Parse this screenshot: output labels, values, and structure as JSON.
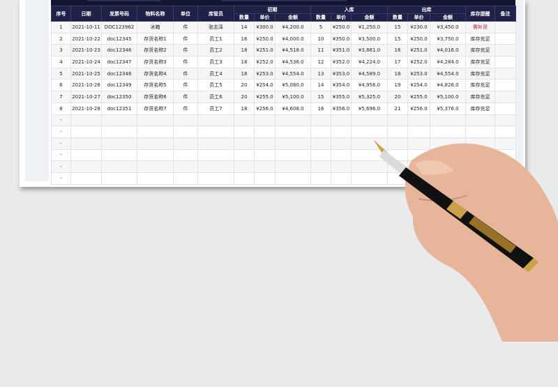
{
  "header": {
    "seq": "序号",
    "date": "日期",
    "invoice": "发票号码",
    "material": "物料名称",
    "unit": "单位",
    "keeper": "库管员",
    "opening": "初期",
    "inbound": "入库",
    "outbound": "出库",
    "reminder": "库存提醒",
    "remark": "备注",
    "qty": "数量",
    "price": "单价",
    "amount": "金额"
  },
  "rows": [
    [
      "1",
      "2021-10-11",
      "DOC123962",
      "冰箱",
      "件",
      "张志泽",
      "14",
      "¥300.0",
      "¥4,200.0",
      "5",
      "¥250.0",
      "¥1,250.0",
      "15",
      "¥230.0",
      "¥3,450.0",
      "需补货",
      ""
    ],
    [
      "2",
      "2021-10-22",
      "doc12345",
      "存货名称1",
      "件",
      "员工1",
      "16",
      "¥250.0",
      "¥4,000.0",
      "10",
      "¥350.0",
      "¥3,500.0",
      "15",
      "¥250.0",
      "¥3,750.0",
      "库存充足",
      ""
    ],
    [
      "3",
      "2021-10-23",
      "doc12346",
      "存货名称2",
      "件",
      "员工2",
      "18",
      "¥251.0",
      "¥4,518.0",
      "11",
      "¥351.0",
      "¥3,861.0",
      "16",
      "¥251.0",
      "¥4,016.0",
      "库存充足",
      ""
    ],
    [
      "4",
      "2021-10-24",
      "doc12347",
      "存货名称3",
      "件",
      "员工3",
      "18",
      "¥252.0",
      "¥4,536.0",
      "12",
      "¥352.0",
      "¥4,224.0",
      "17",
      "¥252.0",
      "¥4,284.0",
      "库存充足",
      ""
    ],
    [
      "5",
      "2021-10-25",
      "doc12348",
      "存货名称4",
      "件",
      "员工4",
      "18",
      "¥253.0",
      "¥4,554.0",
      "13",
      "¥353.0",
      "¥4,589.0",
      "18",
      "¥253.0",
      "¥4,554.0",
      "库存充足",
      ""
    ],
    [
      "6",
      "2021-10-26",
      "doc12349",
      "存货名称5",
      "件",
      "员工5",
      "20",
      "¥254.0",
      "¥5,080.0",
      "14",
      "¥354.0",
      "¥4,956.0",
      "19",
      "¥254.0",
      "¥4,826.0",
      "库存充足",
      ""
    ],
    [
      "7",
      "2021-10-27",
      "doc12350",
      "存货名称6",
      "件",
      "员工6",
      "20",
      "¥255.0",
      "¥5,100.0",
      "15",
      "¥355.0",
      "¥5,325.0",
      "20",
      "¥255.0",
      "¥5,100.0",
      "库存充足",
      ""
    ],
    [
      "8",
      "2021-10-28",
      "doc12351",
      "存货名称7",
      "件",
      "员工7",
      "18",
      "¥256.0",
      "¥4,608.0",
      "16",
      "¥356.0",
      "¥5,696.0",
      "21",
      "¥256.0",
      "¥5,376.0",
      "库存充足",
      ""
    ],
    [
      "-",
      "",
      "",
      "",
      "",
      "",
      "",
      "",
      "",
      "",
      "",
      "",
      "",
      "",
      "",
      "",
      ""
    ],
    [
      "-",
      "",
      "",
      "",
      "",
      "",
      "",
      "",
      "",
      "",
      "",
      "",
      "",
      "",
      "",
      "",
      ""
    ],
    [
      "-",
      "",
      "",
      "",
      "",
      "",
      "",
      "",
      "",
      "",
      "",
      "",
      "",
      "",
      "",
      "",
      ""
    ],
    [
      "-",
      "",
      "",
      "",
      "",
      "",
      "",
      "",
      "",
      "",
      "",
      "",
      "",
      "",
      "",
      "",
      ""
    ],
    [
      "-",
      "",
      "",
      "",
      "",
      "",
      "",
      "",
      "",
      "",
      "",
      "",
      "",
      "",
      "",
      "",
      ""
    ],
    [
      "-",
      "",
      "",
      "",
      "",
      "",
      "",
      "",
      "",
      "",
      "",
      "",
      "",
      "",
      "",
      "",
      ""
    ]
  ],
  "colors": {
    "header_bg": "#1f2146",
    "warn": "#b0141e",
    "accent_line": "#4fd3b0"
  }
}
